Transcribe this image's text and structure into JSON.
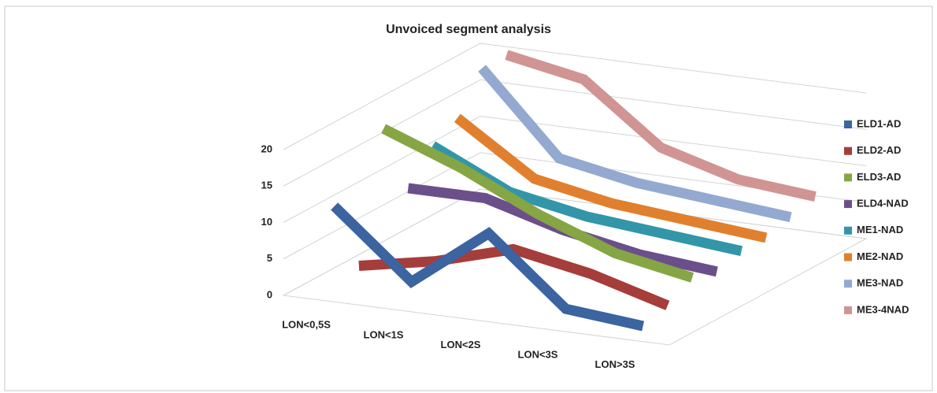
{
  "chart_data": {
    "type": "line3d",
    "title": "Unvoiced segment analysis",
    "categories": [
      "LON<0,5S",
      "LON<1S",
      "LON<2S",
      "LON<3S",
      "LON>3S"
    ],
    "ylim": [
      0,
      20
    ],
    "yticks": [
      0,
      5,
      10,
      15,
      20
    ],
    "grid": true,
    "legend": "right",
    "series": [
      {
        "name": "ELD1-AD",
        "color": "#3b64a0",
        "values": [
          12,
          3,
          11,
          2,
          1
        ]
      },
      {
        "name": "ELD2-AD",
        "color": "#a53d3a",
        "values": [
          2,
          4,
          7,
          5,
          2
        ]
      },
      {
        "name": "ELD3-AD",
        "color": "#86a544",
        "values": [
          19,
          15,
          10,
          6,
          4
        ]
      },
      {
        "name": "ELD4-NAD",
        "color": "#6b4f8a",
        "values": [
          9,
          9,
          6,
          4,
          3
        ]
      },
      {
        "name": "ME1-NAD",
        "color": "#3296a8",
        "values": [
          13,
          8,
          6,
          5,
          4
        ]
      },
      {
        "name": "ME2-NAD",
        "color": "#e0802e",
        "values": [
          15,
          8,
          6,
          5,
          4
        ]
      },
      {
        "name": "ME3-NAD",
        "color": "#93a9d0",
        "values": [
          20,
          9,
          7,
          6,
          5
        ]
      },
      {
        "name": "ME3-4NAD",
        "color": "#d09493",
        "values": [
          20,
          18,
          10,
          7,
          6
        ]
      }
    ]
  }
}
